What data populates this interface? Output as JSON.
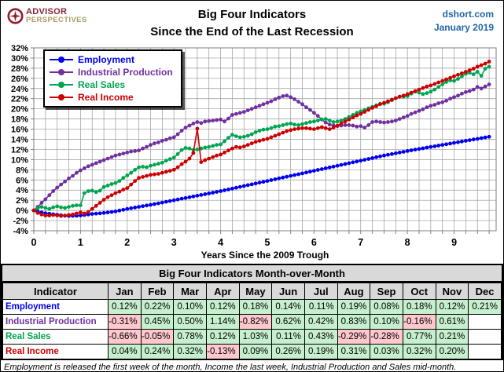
{
  "header": {
    "logo_line1": "ADVISOR",
    "logo_line2": "PERSPECTIVES",
    "title_line1": "Big Four Indicators",
    "title_line2": "Since the End of the Last Recession",
    "source": "dshort.com",
    "date": "January 2019"
  },
  "chart_data": {
    "type": "line",
    "title": "Big Four Indicators Since the End of the Last Recession",
    "xlabel": "Years Since the 2009 Trough",
    "ylabel": "",
    "xlim": [
      0,
      9.9
    ],
    "ylim": [
      -4,
      32
    ],
    "x_ticks": [
      0,
      1,
      2,
      3,
      4,
      5,
      6,
      7,
      8,
      9
    ],
    "x_minor_grid_step": 0.25,
    "y_ticks": [
      32,
      30,
      28,
      26,
      24,
      22,
      20,
      18,
      16,
      14,
      12,
      10,
      8,
      6,
      4,
      2,
      0,
      -2,
      -4
    ],
    "y_grid_step": 2,
    "grid": true,
    "grid_color": "#9a9a9a",
    "legend_position": "top-left",
    "x_definition": {
      "start_year": 0,
      "step_years_per_point": 0.0833333,
      "points": 118
    },
    "series": [
      {
        "name": "Employment",
        "color": "#0000ee",
        "values": [
          0,
          -0.2,
          -0.4,
          -0.55,
          -0.65,
          -0.75,
          -0.85,
          -0.95,
          -1.05,
          -1.1,
          -1.08,
          -1.05,
          -1.0,
          -0.9,
          -0.8,
          -0.7,
          -0.63,
          -0.57,
          -0.5,
          -0.4,
          -0.3,
          -0.2,
          -0.03,
          0.13,
          0.3,
          0.43,
          0.57,
          0.7,
          0.83,
          0.97,
          1.1,
          1.25,
          1.4,
          1.55,
          1.7,
          1.85,
          2.0,
          2.15,
          2.3,
          2.45,
          2.6,
          2.75,
          2.9,
          3.05,
          3.2,
          3.35,
          3.5,
          3.65,
          3.8,
          3.97,
          4.13,
          4.3,
          4.47,
          4.63,
          4.8,
          4.97,
          5.13,
          5.3,
          5.47,
          5.63,
          5.8,
          5.97,
          6.13,
          6.3,
          6.47,
          6.63,
          6.8,
          6.97,
          7.13,
          7.3,
          7.47,
          7.63,
          7.8,
          7.97,
          8.13,
          8.3,
          8.47,
          8.63,
          8.8,
          8.97,
          9.13,
          9.3,
          9.47,
          9.63,
          9.8,
          9.97,
          10.13,
          10.3,
          10.47,
          10.63,
          10.8,
          10.95,
          11.1,
          11.25,
          11.4,
          11.55,
          11.7,
          11.83,
          11.97,
          12.1,
          12.23,
          12.37,
          12.5,
          12.63,
          12.77,
          12.9,
          13.03,
          13.17,
          13.3,
          13.43,
          13.57,
          13.7,
          13.83,
          13.97,
          14.1,
          14.23,
          14.37,
          14.5
        ]
      },
      {
        "name": "Industrial Production",
        "color": "#7030a0",
        "values": [
          0,
          0.7,
          1.5,
          2.2,
          3,
          3.8,
          4.5,
          5.1,
          5.7,
          6.3,
          6.8,
          7.4,
          7.9,
          8.3,
          8.7,
          9,
          9.3,
          9.6,
          9.9,
          10.2,
          10.5,
          10.8,
          11,
          11.2,
          11.4,
          11.6,
          11.7,
          11.8,
          12.2,
          12.5,
          12.9,
          13.2,
          13.4,
          13.7,
          13.9,
          14.2,
          14.4,
          15,
          15.7,
          16.3,
          16.7,
          17.1,
          17.4,
          17.2,
          17.5,
          17.6,
          17.7,
          17.8,
          17.9,
          17.5,
          18.1,
          18.8,
          19,
          19.2,
          19.4,
          19.7,
          20,
          20.3,
          20.6,
          20.9,
          21.2,
          21.5,
          21.9,
          22.2,
          22.5,
          22.6,
          22.3,
          21.9,
          21.4,
          20.9,
          20.3,
          19.8,
          19.2,
          18.6,
          17.9,
          17.3,
          16.9,
          16.7,
          16.6,
          16.7,
          16.8,
          16.8,
          16.7,
          16.5,
          16.6,
          16.3,
          16.8,
          17.4,
          17.5,
          17.4,
          17.3,
          17.4,
          17.5,
          17.7,
          18,
          18.3,
          18.6,
          19,
          19.3,
          19.6,
          19.9,
          20.3,
          20.6,
          20.8,
          21.1,
          21.3,
          21.6,
          22,
          22.3,
          22.6,
          23,
          23.3,
          23.5,
          23.8,
          24.3,
          24,
          24.4,
          24.8
        ]
      },
      {
        "name": "Real Sales",
        "color": "#00a550",
        "values": [
          0,
          0.4,
          0.7,
          0.5,
          0.3,
          0.6,
          0.8,
          0.6,
          0.5,
          0.7,
          0.9,
          1.0,
          1.0,
          3.4,
          3.8,
          3.9,
          3.6,
          3.9,
          4.6,
          4.9,
          5.2,
          5.4,
          5.8,
          6.4,
          6.9,
          7.4,
          8.0,
          8.5,
          8.6,
          8.5,
          8.8,
          9.0,
          9.2,
          9.4,
          9.8,
          10.1,
          10.4,
          11.1,
          11.9,
          12.3,
          12.2,
          11.9,
          12.0,
          12.2,
          12.4,
          12.5,
          12.7,
          12.9,
          13.0,
          13.6,
          14.3,
          14.9,
          14.6,
          14.4,
          14.5,
          14.7,
          15.0,
          15.4,
          15.7,
          15.9,
          16.0,
          16.2,
          16.5,
          16.6,
          16.8,
          17.0,
          17.1,
          16.9,
          16.8,
          17.0,
          17.2,
          17.4,
          17.5,
          17.7,
          17.9,
          18.0,
          17.7,
          17.4,
          17.5,
          17.7,
          18.0,
          18.4,
          18.8,
          19.2,
          19.5,
          19.8,
          20.1,
          20.4,
          20.7,
          21.0,
          21.0,
          21.3,
          21.7,
          22.1,
          22.4,
          22.4,
          22.5,
          23.0,
          23.4,
          23.2,
          22.9,
          23.1,
          23.4,
          23.8,
          24.3,
          24.8,
          25.3,
          25.6,
          25.5,
          25.9,
          26.4,
          26.9,
          27.1,
          26.8,
          27.3,
          26.5,
          27.9,
          28.3
        ]
      },
      {
        "name": "Real Income",
        "color": "#cc0000",
        "values": [
          0,
          -0.5,
          -0.8,
          -1.0,
          -1.0,
          -0.9,
          -1.0,
          -1.1,
          -1.0,
          -0.9,
          -0.8,
          -0.6,
          -0.4,
          -0.6,
          -0.3,
          0.3,
          0.9,
          1.5,
          2.1,
          2.6,
          3.0,
          3.4,
          3.7,
          4.1,
          4.4,
          5.1,
          5.8,
          6.4,
          6.6,
          6.8,
          7.0,
          7.1,
          7.2,
          7.4,
          7.6,
          7.8,
          8.0,
          8.5,
          9.1,
          9.6,
          10.2,
          11.3,
          16.1,
          9.5,
          9.9,
          10.2,
          10.5,
          10.8,
          11.0,
          11.4,
          11.8,
          12.2,
          12.5,
          12.4,
          12.6,
          12.9,
          13.2,
          13.5,
          13.7,
          13.9,
          14.1,
          14.4,
          14.7,
          15.0,
          15.3,
          15.6,
          15.8,
          16.0,
          16.1,
          16.2,
          16.2,
          16.1,
          16.0,
          16.2,
          16.4,
          16.2,
          16.0,
          16.3,
          16.7,
          17.1,
          17.5,
          17.9,
          18.3,
          18.7,
          19.0,
          19.4,
          19.8,
          20.2,
          20.5,
          20.9,
          21.2,
          21.5,
          21.8,
          22.1,
          22.4,
          22.6,
          22.9,
          23.2,
          23.5,
          23.8,
          24.1,
          24.4,
          24.6,
          24.9,
          25.2,
          25.5,
          25.8,
          26.1,
          26.4,
          26.7,
          27.0,
          27.3,
          27.6,
          27.9,
          28.3,
          28.6,
          28.9,
          29.3
        ]
      }
    ]
  },
  "table": {
    "title": "Big Four Indicators Month-over-Month",
    "columns": [
      "Indicator",
      "Jan",
      "Feb",
      "Mar",
      "Apr",
      "May",
      "Jun",
      "Jul",
      "Aug",
      "Sep",
      "Oct",
      "Nov",
      "Dec"
    ],
    "positive_bg": "#c6efce",
    "negative_bg": "#ffc7ce",
    "header_bg": "#d9d9d9",
    "rows": [
      {
        "indicator": "Employment",
        "color": "#0000ee",
        "values": [
          "0.12%",
          "0.22%",
          "0.10%",
          "0.12%",
          "0.18%",
          "0.14%",
          "0.11%",
          "0.19%",
          "0.08%",
          "0.18%",
          "0.12%",
          "0.21%"
        ]
      },
      {
        "indicator": "Industrial Production",
        "color": "#7030a0",
        "values": [
          "-0.31%",
          "0.45%",
          "0.50%",
          "1.14%",
          "-0.82%",
          "0.62%",
          "0.42%",
          "0.83%",
          "0.10%",
          "-0.16%",
          "0.61%",
          ""
        ]
      },
      {
        "indicator": "Real Sales",
        "color": "#00a550",
        "values": [
          "-0.66%",
          "-0.05%",
          "0.78%",
          "0.12%",
          "1.03%",
          "0.11%",
          "0.43%",
          "-0.29%",
          "-0.28%",
          "0.77%",
          "0.21%",
          ""
        ]
      },
      {
        "indicator": "Real Income",
        "color": "#cc0000",
        "values": [
          "0.04%",
          "0.24%",
          "0.32%",
          "-0.13%",
          "0.09%",
          "0.26%",
          "0.19%",
          "0.31%",
          "0.03%",
          "0.32%",
          "0.20%",
          ""
        ]
      }
    ]
  },
  "footnote": "Employment is released the first week of the month, Income the last week, Industrial Production and Sales mid-month."
}
